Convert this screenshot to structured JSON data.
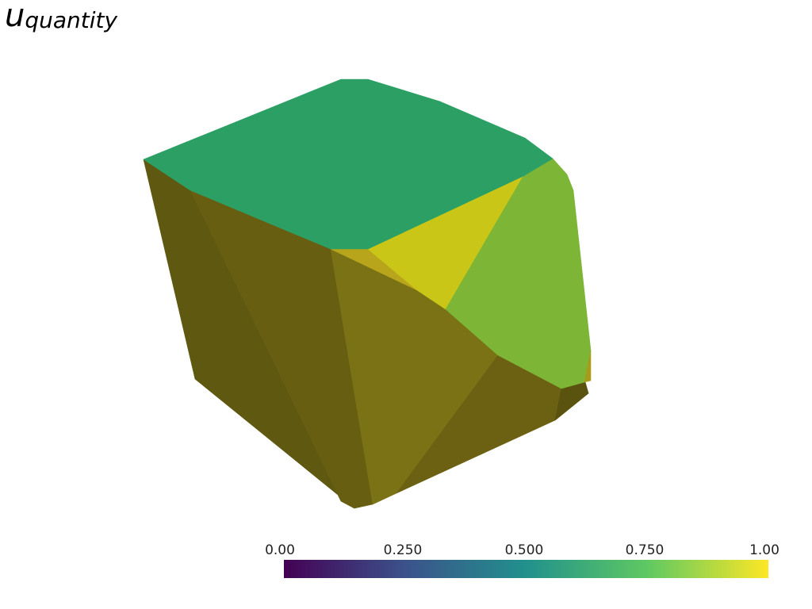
{
  "title": {
    "base": "u",
    "subscript": "quantity"
  },
  "scalar_bar": {
    "colormap": "viridis",
    "range": [
      0.0,
      1.0
    ],
    "tick_labels": [
      "0.00",
      "0.250",
      "0.500",
      "0.750",
      "1.00"
    ],
    "stops": [
      "#440154",
      "#3b528b",
      "#21918c",
      "#5ec962",
      "#fde725"
    ]
  },
  "mesh": {
    "faces": [
      {
        "id": "top-face",
        "color": "#2ca064"
      },
      {
        "id": "upper-right-green-face",
        "color": "#7db536"
      },
      {
        "id": "yellow-face",
        "color": "#c9c617"
      },
      {
        "id": "yellow-sliver-top",
        "color": "#d6c11c"
      },
      {
        "id": "yellow-sliver-right",
        "color": "#a99b1a"
      },
      {
        "id": "gold-sliver-mid",
        "color": "#b9a51c"
      },
      {
        "id": "left-dark-face",
        "color": "#5f5811"
      },
      {
        "id": "left-mid-face",
        "color": "#685e12"
      },
      {
        "id": "front-face",
        "color": "#7a7214"
      },
      {
        "id": "lower-right-face",
        "color": "#6c6112"
      },
      {
        "id": "bottom-edge-face",
        "color": "#5a5310"
      }
    ]
  }
}
